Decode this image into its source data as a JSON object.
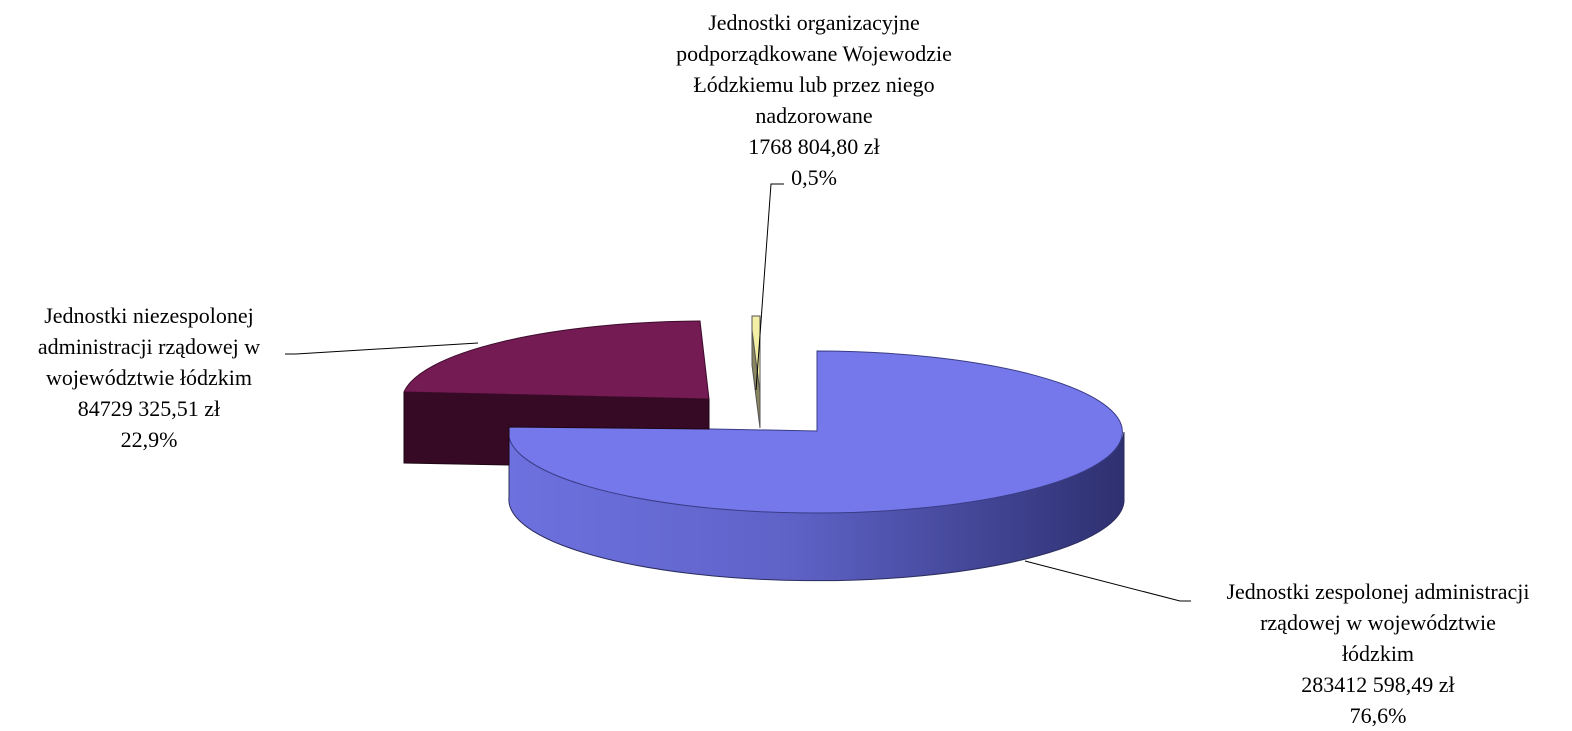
{
  "chart_data": {
    "type": "pie",
    "style": "3d-exploded",
    "slices": [
      {
        "key": "zespolone",
        "label_lines": [
          "Jednostki zespolonej administracji",
          "rządowej w województwie",
          "łódzkim"
        ],
        "value": 283412598.49,
        "value_text": "283412 598,49 zł",
        "percent": 76.6,
        "percent_text": "76,6%",
        "color": "#7478EA"
      },
      {
        "key": "niezespolone",
        "label_lines": [
          "Jednostki niezespolonej",
          "administracji rządowej w",
          "województwie łódzkim"
        ],
        "value": 84729325.51,
        "value_text": "84729 325,51 zł",
        "percent": 22.9,
        "percent_text": "22,9%",
        "color": "#741B54"
      },
      {
        "key": "podporzadkowane",
        "label_lines": [
          "Jednostki organizacyjne",
          "podporządkowane Wojewodzie",
          "Łódzkiemu lub przez niego",
          "nadzorowane"
        ],
        "value": 1768804.8,
        "value_text": "1768 804,80 zł",
        "percent": 0.5,
        "percent_text": "0,5%",
        "color": "#F3F0A6"
      }
    ]
  }
}
